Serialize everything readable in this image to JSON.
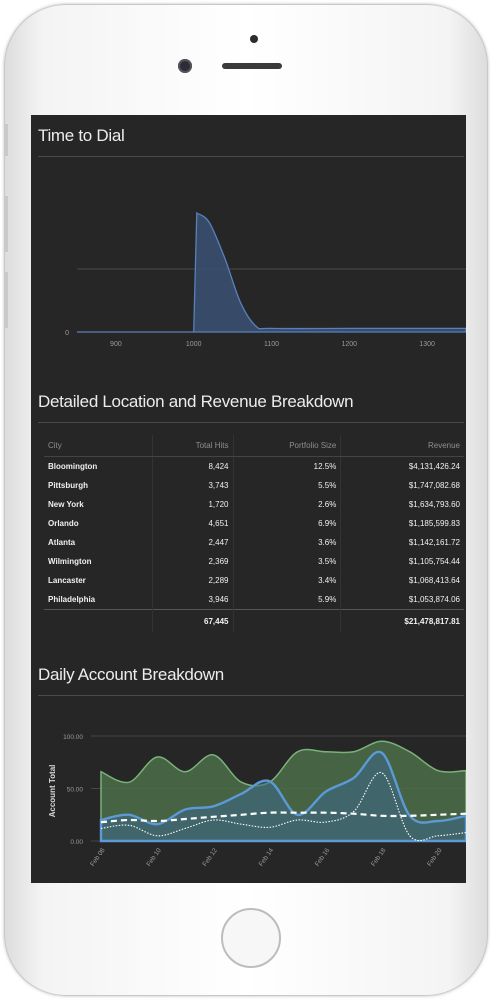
{
  "time_to_dial": {
    "title": "Time to Dial",
    "y_tick": "0",
    "x_ticks": [
      "900",
      "1000",
      "1100",
      "1200",
      "1300"
    ]
  },
  "location_revenue": {
    "title": "Detailed Location and Revenue Breakdown",
    "headers": [
      "City",
      "Total Hits",
      "Portfolio Size",
      "Revenue"
    ],
    "rows": [
      {
        "city": "Bloomington",
        "hits": "8,424",
        "portfolio": "12.5%",
        "revenue": "$4,131,426.24"
      },
      {
        "city": "Pittsburgh",
        "hits": "3,743",
        "portfolio": "5.5%",
        "revenue": "$1,747,082.68"
      },
      {
        "city": "New York",
        "hits": "1,720",
        "portfolio": "2.6%",
        "revenue": "$1,634,793.60"
      },
      {
        "city": "Orlando",
        "hits": "4,651",
        "portfolio": "6.9%",
        "revenue": "$1,185,599.83"
      },
      {
        "city": "Atlanta",
        "hits": "2,447",
        "portfolio": "3.6%",
        "revenue": "$1,142,161.72"
      },
      {
        "city": "Wilmington",
        "hits": "2,369",
        "portfolio": "3.5%",
        "revenue": "$1,105,754.44"
      },
      {
        "city": "Lancaster",
        "hits": "2,289",
        "portfolio": "3.4%",
        "revenue": "$1,068,413.64"
      },
      {
        "city": "Philadelphia",
        "hits": "3,946",
        "portfolio": "5.9%",
        "revenue": "$1,053,874.06"
      }
    ],
    "totals": {
      "hits": "67,445",
      "revenue": "$21,478,817.81"
    }
  },
  "daily_account": {
    "title": "Daily Account Breakdown",
    "ylabel": "Account Total",
    "y_ticks": [
      "100.00",
      "50.00",
      "0.00"
    ],
    "x_ticks": [
      "Feb 08",
      "Feb 10",
      "Feb 12",
      "Feb 14",
      "Feb 16",
      "Feb 18",
      "Feb 20"
    ]
  },
  "colors": {
    "background": "#262626",
    "area_blue": "#4a78b4",
    "area_green": "#5a8a5a",
    "line_white": "#ffffff"
  },
  "chart_data": [
    {
      "type": "area",
      "title": "Time to Dial",
      "x": [
        850,
        900,
        950,
        1000,
        1004,
        1020,
        1040,
        1060,
        1080,
        1100,
        1200,
        1300,
        1350
      ],
      "values": [
        0,
        0,
        0,
        0,
        1.0,
        0.92,
        0.62,
        0.25,
        0.05,
        0.03,
        0.03,
        0.03,
        0.03
      ],
      "xlim": [
        850,
        1350
      ],
      "grid": true
    },
    {
      "type": "area",
      "title": "Daily Account Breakdown",
      "ylabel": "Account Total",
      "categories": [
        "Feb 08",
        "Feb 09",
        "Feb 10",
        "Feb 11",
        "Feb 12",
        "Feb 13",
        "Feb 14",
        "Feb 15",
        "Feb 16",
        "Feb 17",
        "Feb 18",
        "Feb 19",
        "Feb 20",
        "Feb 21"
      ],
      "series": [
        {
          "values": [
            66,
            56,
            80,
            66,
            82,
            56,
            56,
            85,
            85,
            85,
            95,
            85,
            67,
            67
          ]
        },
        {
          "values": [
            20,
            25,
            16,
            30,
            33,
            45,
            57,
            25,
            47,
            60,
            84,
            24,
            19,
            24
          ]
        },
        {
          "values": [
            12,
            15,
            5,
            12,
            20,
            16,
            13,
            20,
            18,
            28,
            65,
            5,
            5,
            8
          ]
        },
        {
          "values": [
            18,
            20,
            19,
            21,
            23,
            25,
            27,
            27,
            27,
            26,
            24,
            24,
            25,
            26
          ]
        }
      ],
      "ylim": [
        0,
        100
      ],
      "grid": true
    }
  ]
}
